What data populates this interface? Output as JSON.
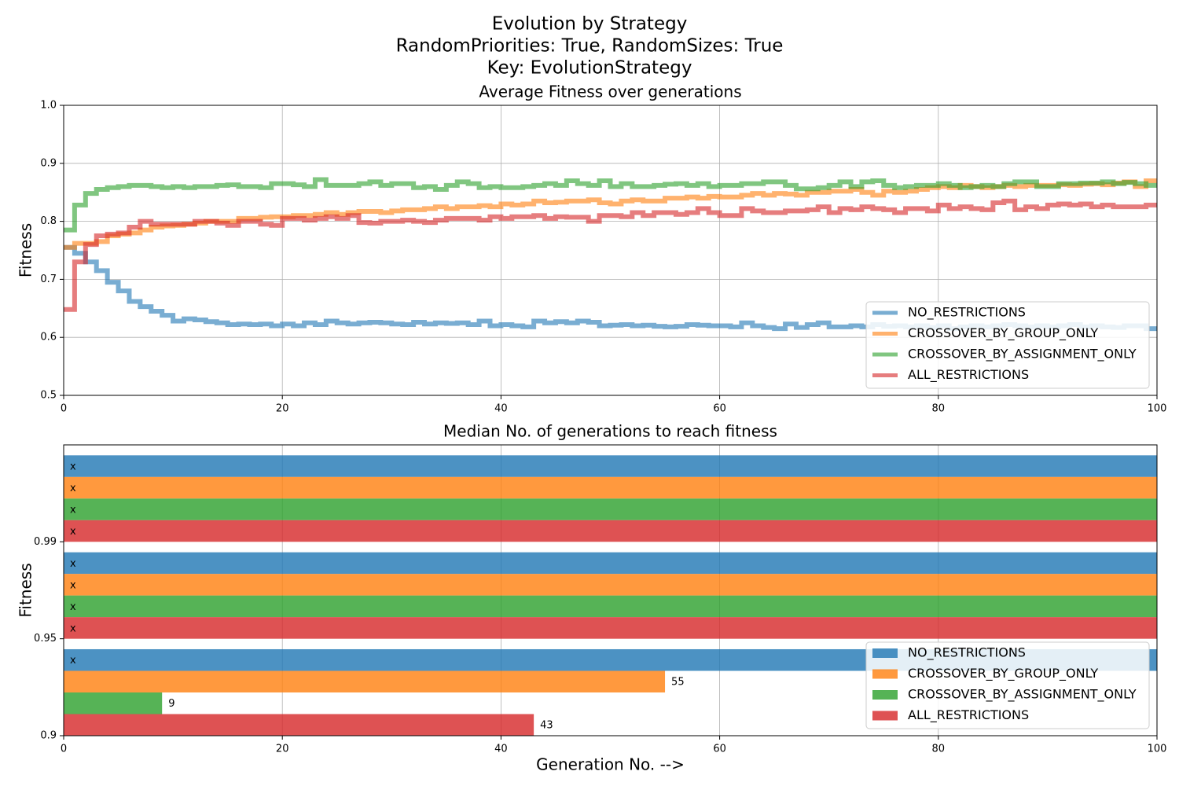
{
  "title": [
    "Evolution by Strategy",
    "RandomPriorities: True, RandomSizes: True",
    "Key: EvolutionStrategy"
  ],
  "chart_data": [
    {
      "type": "step",
      "title": "Average Fitness over generations",
      "ylabel": "Fitness",
      "x": [
        0,
        1,
        2,
        3,
        4,
        5,
        6,
        7,
        8,
        9,
        10,
        11,
        12,
        13,
        14,
        15,
        16,
        17,
        18,
        19,
        20,
        21,
        22,
        23,
        24,
        25,
        26,
        27,
        28,
        29,
        30,
        31,
        32,
        33,
        34,
        35,
        36,
        37,
        38,
        39,
        40,
        41,
        42,
        43,
        44,
        45,
        46,
        47,
        48,
        49,
        50,
        51,
        52,
        53,
        54,
        55,
        56,
        57,
        58,
        59,
        60,
        61,
        62,
        63,
        64,
        65,
        66,
        67,
        68,
        69,
        70,
        71,
        72,
        73,
        74,
        75,
        76,
        77,
        78,
        79,
        80,
        81,
        82,
        83,
        84,
        85,
        86,
        87,
        88,
        89,
        90,
        91,
        92,
        93,
        94,
        95,
        96,
        97,
        98,
        99,
        100
      ],
      "series": [
        {
          "name": "NO_RESTRICTIONS",
          "color": "#1f77b4",
          "values": [
            0.755,
            0.745,
            0.73,
            0.715,
            0.695,
            0.68,
            0.662,
            0.653,
            0.645,
            0.638,
            0.628,
            0.632,
            0.63,
            0.627,
            0.625,
            0.622,
            0.623,
            0.622,
            0.623,
            0.62,
            0.623,
            0.62,
            0.625,
            0.622,
            0.628,
            0.625,
            0.623,
            0.625,
            0.626,
            0.625,
            0.623,
            0.622,
            0.626,
            0.623,
            0.625,
            0.624,
            0.625,
            0.622,
            0.628,
            0.62,
            0.622,
            0.62,
            0.618,
            0.628,
            0.625,
            0.627,
            0.625,
            0.628,
            0.626,
            0.62,
            0.621,
            0.622,
            0.62,
            0.621,
            0.619,
            0.618,
            0.619,
            0.622,
            0.621,
            0.62,
            0.62,
            0.618,
            0.625,
            0.62,
            0.617,
            0.615,
            0.623,
            0.617,
            0.622,
            0.625,
            0.618,
            0.618,
            0.62,
            0.618,
            0.622,
            0.619,
            0.62,
            0.618,
            0.62,
            0.617,
            0.62,
            0.615,
            0.618,
            0.62,
            0.618,
            0.62,
            0.622,
            0.62,
            0.618,
            0.62,
            0.618,
            0.62,
            0.622,
            0.618,
            0.62,
            0.618,
            0.617,
            0.62,
            0.62,
            0.615,
            0.615
          ]
        },
        {
          "name": "CROSSOVER_BY_GROUP_ONLY",
          "color": "#ff7f0e",
          "values": [
            0.755,
            0.762,
            0.762,
            0.765,
            0.775,
            0.778,
            0.78,
            0.785,
            0.79,
            0.792,
            0.793,
            0.795,
            0.797,
            0.8,
            0.8,
            0.8,
            0.805,
            0.805,
            0.807,
            0.808,
            0.808,
            0.81,
            0.81,
            0.812,
            0.815,
            0.812,
            0.815,
            0.817,
            0.817,
            0.815,
            0.818,
            0.82,
            0.82,
            0.822,
            0.825,
            0.822,
            0.825,
            0.825,
            0.827,
            0.825,
            0.83,
            0.828,
            0.83,
            0.835,
            0.832,
            0.833,
            0.835,
            0.835,
            0.837,
            0.832,
            0.83,
            0.835,
            0.837,
            0.835,
            0.835,
            0.84,
            0.84,
            0.842,
            0.84,
            0.843,
            0.842,
            0.842,
            0.845,
            0.848,
            0.845,
            0.848,
            0.847,
            0.845,
            0.85,
            0.85,
            0.852,
            0.852,
            0.855,
            0.85,
            0.845,
            0.852,
            0.85,
            0.852,
            0.855,
            0.858,
            0.86,
            0.858,
            0.862,
            0.86,
            0.858,
            0.86,
            0.862,
            0.86,
            0.862,
            0.862,
            0.862,
            0.863,
            0.862,
            0.864,
            0.865,
            0.863,
            0.866,
            0.868,
            0.86,
            0.87,
            0.87
          ]
        },
        {
          "name": "CROSSOVER_BY_ASSIGNMENT_ONLY",
          "color": "#2ca02c",
          "values": [
            0.785,
            0.828,
            0.848,
            0.855,
            0.858,
            0.86,
            0.862,
            0.862,
            0.86,
            0.858,
            0.86,
            0.858,
            0.86,
            0.86,
            0.862,
            0.863,
            0.86,
            0.86,
            0.858,
            0.865,
            0.865,
            0.863,
            0.86,
            0.872,
            0.862,
            0.862,
            0.862,
            0.865,
            0.868,
            0.862,
            0.865,
            0.865,
            0.858,
            0.86,
            0.855,
            0.862,
            0.868,
            0.865,
            0.858,
            0.86,
            0.858,
            0.858,
            0.86,
            0.862,
            0.865,
            0.862,
            0.87,
            0.865,
            0.862,
            0.87,
            0.86,
            0.865,
            0.86,
            0.86,
            0.862,
            0.864,
            0.865,
            0.862,
            0.865,
            0.86,
            0.862,
            0.862,
            0.865,
            0.865,
            0.868,
            0.868,
            0.862,
            0.856,
            0.856,
            0.858,
            0.862,
            0.868,
            0.86,
            0.868,
            0.87,
            0.862,
            0.858,
            0.86,
            0.862,
            0.862,
            0.865,
            0.862,
            0.858,
            0.86,
            0.862,
            0.86,
            0.865,
            0.868,
            0.868,
            0.86,
            0.86,
            0.865,
            0.865,
            0.866,
            0.866,
            0.868,
            0.865,
            0.867,
            0.865,
            0.862,
            0.865
          ]
        },
        {
          "name": "ALL_RESTRICTIONS",
          "color": "#d62728",
          "values": [
            0.648,
            0.73,
            0.76,
            0.775,
            0.778,
            0.78,
            0.79,
            0.8,
            0.795,
            0.795,
            0.795,
            0.795,
            0.8,
            0.8,
            0.797,
            0.793,
            0.8,
            0.8,
            0.795,
            0.793,
            0.805,
            0.805,
            0.802,
            0.805,
            0.808,
            0.805,
            0.81,
            0.798,
            0.797,
            0.8,
            0.8,
            0.802,
            0.8,
            0.798,
            0.802,
            0.805,
            0.805,
            0.805,
            0.802,
            0.808,
            0.805,
            0.808,
            0.808,
            0.81,
            0.805,
            0.808,
            0.807,
            0.807,
            0.8,
            0.81,
            0.81,
            0.808,
            0.815,
            0.81,
            0.815,
            0.815,
            0.812,
            0.815,
            0.822,
            0.815,
            0.81,
            0.81,
            0.822,
            0.818,
            0.815,
            0.815,
            0.818,
            0.818,
            0.82,
            0.825,
            0.815,
            0.822,
            0.82,
            0.825,
            0.822,
            0.82,
            0.815,
            0.822,
            0.822,
            0.818,
            0.828,
            0.822,
            0.825,
            0.822,
            0.82,
            0.832,
            0.835,
            0.82,
            0.825,
            0.822,
            0.828,
            0.83,
            0.828,
            0.83,
            0.825,
            0.828,
            0.825,
            0.825,
            0.825,
            0.828,
            0.828
          ]
        }
      ],
      "xlim": [
        0,
        100
      ],
      "xticks": [
        0,
        20,
        40,
        60,
        80,
        100
      ],
      "ylim": [
        0.5,
        1
      ],
      "yticks": [
        0.5,
        0.6,
        0.7,
        0.8,
        0.9,
        {
          "value": 1,
          "label": "1.0"
        }
      ],
      "grid": true,
      "legend": "lower right"
    },
    {
      "type": "barh",
      "title": "Median No. of generations to reach fitness",
      "xlabel": "Generation No. -->",
      "ylabel": "Fitness",
      "categories": [
        "0.9",
        "0.95",
        "0.99"
      ],
      "series": [
        {
          "name": "NO_RESTRICTIONS",
          "color": "#1f77b4",
          "values": [
            null,
            null,
            null
          ],
          "value_labels": [
            "x",
            "x",
            "x"
          ]
        },
        {
          "name": "CROSSOVER_BY_GROUP_ONLY",
          "color": "#ff7f0e",
          "values": [
            55,
            null,
            null
          ],
          "value_labels": [
            "55",
            "x",
            "x"
          ]
        },
        {
          "name": "CROSSOVER_BY_ASSIGNMENT_ONLY",
          "color": "#2ca02c",
          "values": [
            9,
            null,
            null
          ],
          "value_labels": [
            "9",
            "x",
            "x"
          ]
        },
        {
          "name": "ALL_RESTRICTIONS",
          "color": "#d62728",
          "values": [
            43,
            null,
            null
          ],
          "value_labels": [
            "43",
            "x",
            "x"
          ]
        }
      ],
      "xlim": [
        0,
        100
      ],
      "xticks": [
        0,
        20,
        40,
        60,
        80,
        100
      ],
      "grid": true,
      "legend": "lower right"
    }
  ]
}
